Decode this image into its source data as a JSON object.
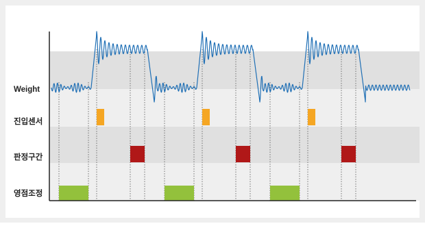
{
  "diagram": {
    "row_labels": [
      "Weight",
      "진입센서",
      "판정구간",
      "영점조정"
    ]
  },
  "colors": {
    "outer_bg": "#efefef",
    "band_dark": "#e0e0e0",
    "band_light": "#efefef",
    "waveform": "#1f6fb5",
    "entry_sensor": "#f5a623",
    "judgment_zone": "#b01818",
    "zero_adjust": "#93c13c",
    "axis": "#222222",
    "guide": "#555555"
  },
  "cycles": 3,
  "cycle_period": 154,
  "icons": []
}
